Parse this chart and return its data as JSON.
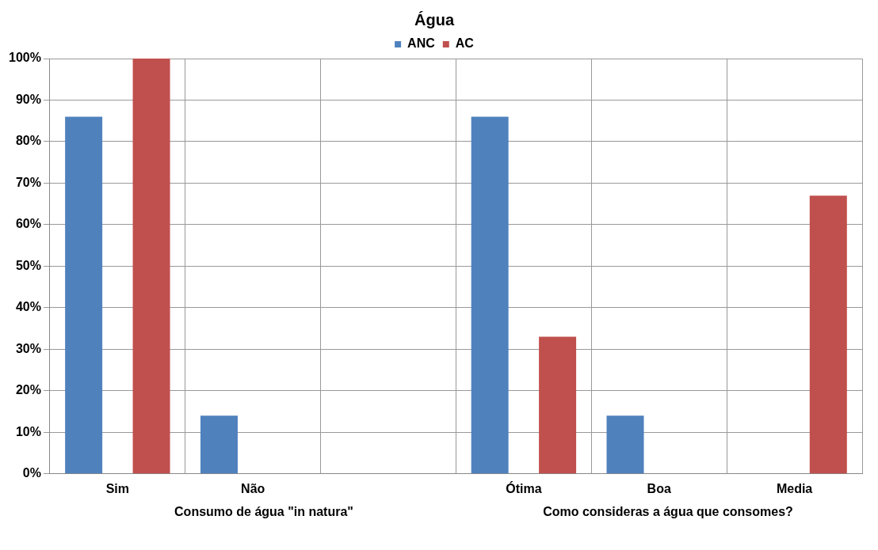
{
  "chart_data": {
    "type": "bar",
    "title": "Água",
    "categories": [
      "Sim",
      "Não",
      null,
      "Ótima",
      "Boa",
      "Media"
    ],
    "series": [
      {
        "name": "ANC",
        "color": "#4f81bd",
        "values": [
          86,
          14,
          null,
          86,
          14,
          0
        ]
      },
      {
        "name": "AC",
        "color": "#c0504d",
        "values": [
          100,
          0,
          null,
          33,
          0,
          67
        ]
      }
    ],
    "ylim": [
      0,
      100
    ],
    "yticks": [
      {
        "value": 0,
        "label": "0%"
      },
      {
        "value": 10,
        "label": "10%"
      },
      {
        "value": 20,
        "label": "20%"
      },
      {
        "value": 30,
        "label": "30%"
      },
      {
        "value": 40,
        "label": "40%"
      },
      {
        "value": 50,
        "label": "50%"
      },
      {
        "value": 60,
        "label": "60%"
      },
      {
        "value": 70,
        "label": "70%"
      },
      {
        "value": 80,
        "label": "80%"
      },
      {
        "value": 90,
        "label": "90%"
      },
      {
        "value": 100,
        "label": "100%"
      }
    ],
    "grid": true,
    "legend": "top",
    "annotations": [
      "Consumo de água \"in natura\"",
      "Como consideras a água que consomes?"
    ]
  }
}
